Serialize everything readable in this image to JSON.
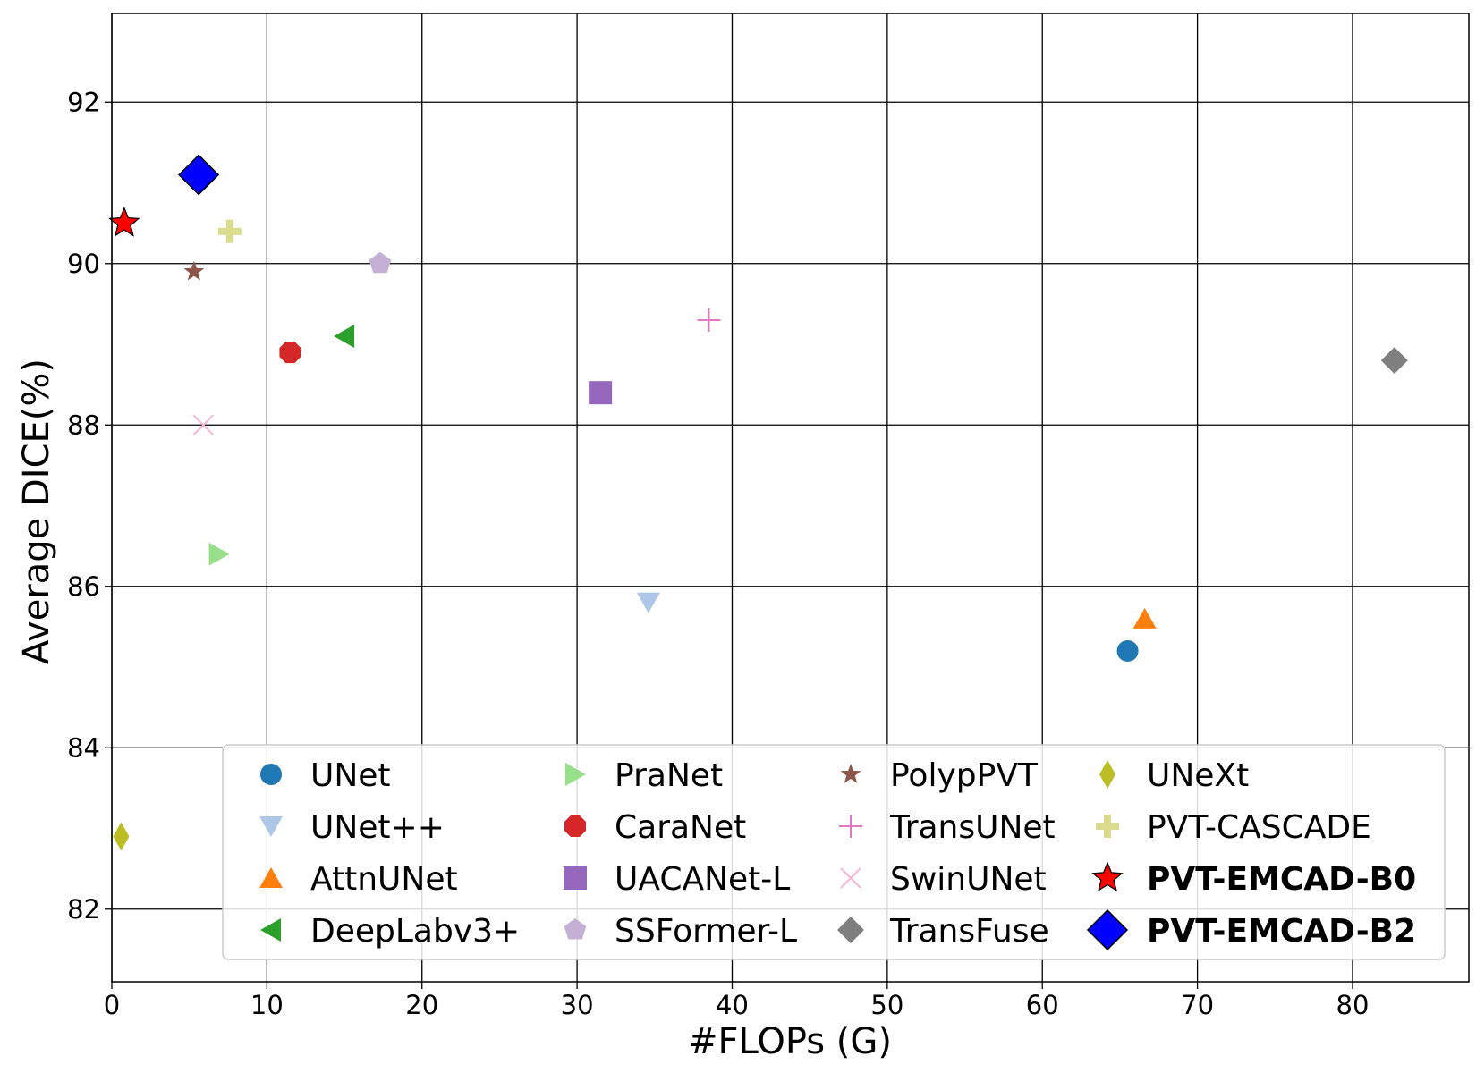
{
  "chart_data": {
    "type": "scatter",
    "xlabel": "#FLOPs (G)",
    "ylabel": "Average DICE(%)",
    "xlim": [
      0,
      87.5
    ],
    "ylim": [
      81.1,
      93.1
    ],
    "xticks": [
      0,
      10,
      20,
      30,
      40,
      50,
      60,
      70,
      80
    ],
    "yticks": [
      82,
      84,
      86,
      88,
      90,
      92
    ],
    "grid": true,
    "legend_position": "lower-right",
    "legend_columns": 4,
    "series": [
      {
        "name": "UNet",
        "x": 65.5,
        "y": 85.2,
        "color": "#1f77b4",
        "marker": "circle",
        "bold": false
      },
      {
        "name": "UNet++",
        "x": 34.6,
        "y": 85.8,
        "color": "#aec7e8",
        "marker": "triangle-down",
        "bold": false
      },
      {
        "name": "AttnUNet",
        "x": 66.6,
        "y": 85.6,
        "color": "#ff7f0e",
        "marker": "triangle-up",
        "bold": false
      },
      {
        "name": "DeepLabv3+",
        "x": 15.0,
        "y": 89.1,
        "color": "#2ca02c",
        "marker": "triangle-left",
        "bold": false
      },
      {
        "name": "PraNet",
        "x": 6.9,
        "y": 86.4,
        "color": "#98df8a",
        "marker": "triangle-right",
        "bold": false
      },
      {
        "name": "CaraNet",
        "x": 11.5,
        "y": 88.9,
        "color": "#d62728",
        "marker": "octagon",
        "bold": false
      },
      {
        "name": "UACANet-L",
        "x": 31.5,
        "y": 88.4,
        "color": "#9467bd",
        "marker": "square",
        "bold": false
      },
      {
        "name": "SSFormer-L",
        "x": 17.3,
        "y": 90.0,
        "color": "#c5b0d5",
        "marker": "pentagon",
        "bold": false
      },
      {
        "name": "PolypPVT",
        "x": 5.3,
        "y": 89.9,
        "color": "#8c564b",
        "marker": "star",
        "bold": false
      },
      {
        "name": "TransUNet",
        "x": 38.5,
        "y": 89.3,
        "color": "#e377c2",
        "marker": "plus",
        "bold": false
      },
      {
        "name": "SwinUNet",
        "x": 5.9,
        "y": 88.0,
        "color": "#f7b6d2",
        "marker": "x",
        "bold": false
      },
      {
        "name": "TransFuse",
        "x": 82.7,
        "y": 88.8,
        "color": "#7f7f7f",
        "marker": "diamond",
        "bold": false
      },
      {
        "name": "UNeXt",
        "x": 0.6,
        "y": 82.9,
        "color": "#bcbd22",
        "marker": "thin-diamond",
        "bold": false
      },
      {
        "name": "PVT-CASCADE",
        "x": 7.6,
        "y": 90.4,
        "color": "#dbdb8d",
        "marker": "plus-filled",
        "bold": false
      },
      {
        "name": "PVT-EMCAD-B0",
        "x": 0.8,
        "y": 90.5,
        "color": "#ff0000",
        "marker": "star-big",
        "bold": true
      },
      {
        "name": "PVT-EMCAD-B2",
        "x": 5.6,
        "y": 91.1,
        "color": "#0000ff",
        "marker": "diamond-big",
        "bold": true
      }
    ]
  }
}
